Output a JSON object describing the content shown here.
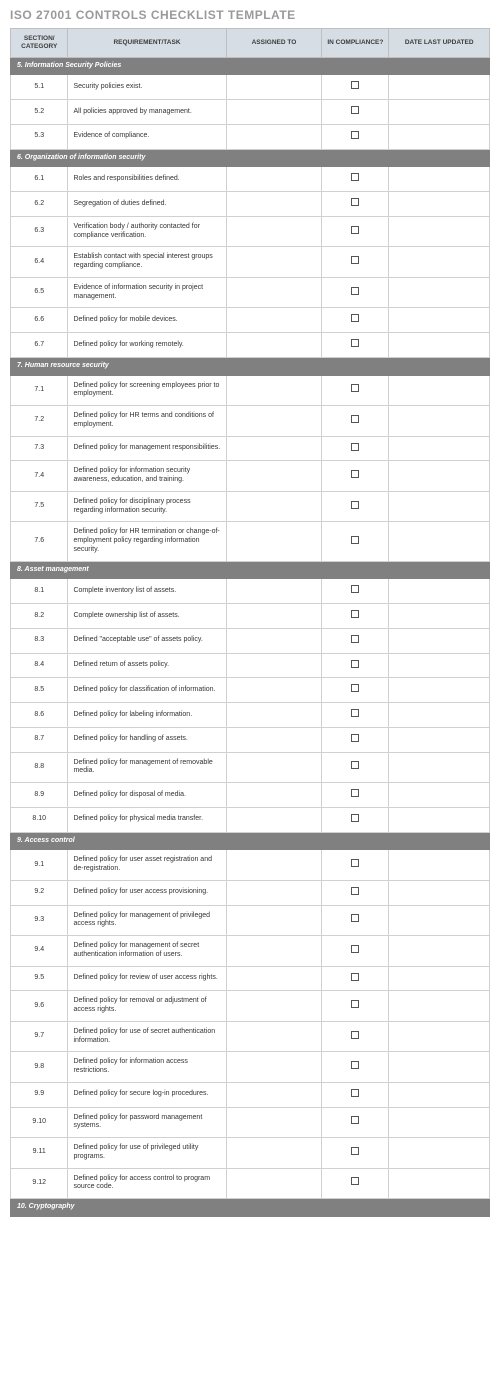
{
  "title": "ISO 27001 CONTROLS CHECKLIST TEMPLATE",
  "columns": {
    "section": "SECTION/\nCATEGORY",
    "task": "REQUIREMENT/TASK",
    "assigned": "ASSIGNED TO",
    "compliance": "IN\nCOMPLIANCE?",
    "updated": "DATE LAST UPDATED"
  },
  "colors": {
    "header_bg": "#d6dde5",
    "group_bg": "#808080",
    "title_color": "#9a9a9a",
    "border": "#d0d0d0"
  },
  "groups": [
    {
      "label": "5. Information Security Policies",
      "rows": [
        {
          "id": "5.1",
          "task": "Security policies exist."
        },
        {
          "id": "5.2",
          "task": "All policies approved by management."
        },
        {
          "id": "5.3",
          "task": "Evidence of compliance."
        }
      ]
    },
    {
      "label": "6. Organization of information security",
      "rows": [
        {
          "id": "6.1",
          "task": "Roles and responsibilities defined."
        },
        {
          "id": "6.2",
          "task": "Segregation of duties defined."
        },
        {
          "id": "6.3",
          "task": "Verification body / authority contacted for compliance verification."
        },
        {
          "id": "6.4",
          "task": "Establish contact with special interest groups regarding compliance."
        },
        {
          "id": "6.5",
          "task": "Evidence of information security in project management."
        },
        {
          "id": "6.6",
          "task": "Defined policy for mobile devices."
        },
        {
          "id": "6.7",
          "task": "Defined policy for working remotely."
        }
      ]
    },
    {
      "label": "7. Human resource security",
      "rows": [
        {
          "id": "7.1",
          "task": "Defined policy for screening employees prior to employment."
        },
        {
          "id": "7.2",
          "task": "Defined policy for HR terms and conditions of employment."
        },
        {
          "id": "7.3",
          "task": "Defined policy for management responsibilities."
        },
        {
          "id": "7.4",
          "task": "Defined policy for information security awareness, education, and training."
        },
        {
          "id": "7.5",
          "task": "Defined policy for disciplinary process regarding information security."
        },
        {
          "id": "7.6",
          "task": "Defined policy for HR termination or change-of-employment policy regarding information security."
        }
      ]
    },
    {
      "label": "8. Asset management",
      "rows": [
        {
          "id": "8.1",
          "task": "Complete inventory list of assets."
        },
        {
          "id": "8.2",
          "task": "Complete ownership list of assets."
        },
        {
          "id": "8.3",
          "task": "Defined \"acceptable use\" of assets policy."
        },
        {
          "id": "8.4",
          "task": "Defined return of assets policy."
        },
        {
          "id": "8.5",
          "task": "Defined policy for classification of information."
        },
        {
          "id": "8.6",
          "task": "Defined policy for labeling information."
        },
        {
          "id": "8.7",
          "task": "Defined policy for handling of assets."
        },
        {
          "id": "8.8",
          "task": "Defined policy for management of removable media."
        },
        {
          "id": "8.9",
          "task": "Defined policy for disposal of media."
        },
        {
          "id": "8.10",
          "task": "Defined policy for physical media transfer."
        }
      ]
    },
    {
      "label": "9. Access control",
      "rows": [
        {
          "id": "9.1",
          "task": "Defined policy for user asset registration and de-registration."
        },
        {
          "id": "9.2",
          "task": "Defined policy for user access provisioning."
        },
        {
          "id": "9.3",
          "task": "Defined policy for management of privileged access rights."
        },
        {
          "id": "9.4",
          "task": "Defined policy for management of secret authentication information of users."
        },
        {
          "id": "9.5",
          "task": "Defined policy for review of user access rights."
        },
        {
          "id": "9.6",
          "task": "Defined policy for removal or adjustment of access rights."
        },
        {
          "id": "9.7",
          "task": "Defined policy for use of secret authentication information."
        },
        {
          "id": "9.8",
          "task": "Defined policy for information access restrictions."
        },
        {
          "id": "9.9",
          "task": "Defined policy for secure log-in procedures."
        },
        {
          "id": "9.10",
          "task": "Defined policy for password management systems."
        },
        {
          "id": "9.11",
          "task": "Defined policy for use of privileged utility programs."
        },
        {
          "id": "9.12",
          "task": "Defined policy for access control to program source code."
        }
      ]
    },
    {
      "label": "10. Cryptography",
      "rows": []
    }
  ]
}
